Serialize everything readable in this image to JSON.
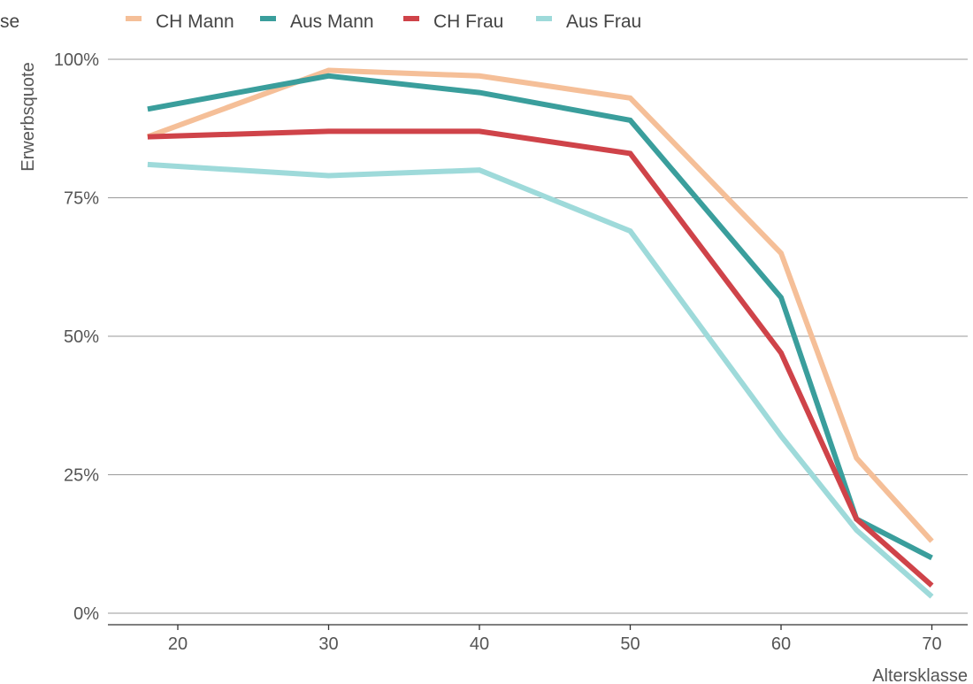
{
  "chart_data": {
    "type": "line",
    "legend_fragment": "se",
    "xlabel": "Altersklasse",
    "ylabel": "Erwerbsquote",
    "xlim": [
      16,
      72
    ],
    "ylim": [
      0,
      1
    ],
    "x_ticks": [
      20,
      30,
      40,
      50,
      60,
      70
    ],
    "x_tick_labels": [
      "20",
      "30",
      "40",
      "50",
      "60",
      "70"
    ],
    "y_ticks": [
      0,
      0.25,
      0.5,
      0.75,
      1.0
    ],
    "y_tick_labels": [
      "0%",
      "25%",
      "50%",
      "75%",
      "100%"
    ],
    "grid": "horizontal",
    "legend_position": "top",
    "x": [
      18,
      30,
      40,
      50,
      60,
      65,
      70
    ],
    "series": [
      {
        "name": "CH Mann",
        "color": "#f5bf98",
        "values": [
          0.86,
          0.98,
          0.97,
          0.93,
          0.65,
          0.28,
          0.13
        ]
      },
      {
        "name": "Aus Mann",
        "color": "#3a9e9c",
        "values": [
          0.91,
          0.97,
          0.94,
          0.89,
          0.57,
          0.17,
          0.1
        ]
      },
      {
        "name": "CH Frau",
        "color": "#cf4349",
        "values": [
          0.86,
          0.87,
          0.87,
          0.83,
          0.47,
          0.17,
          0.05
        ]
      },
      {
        "name": "Aus Frau",
        "color": "#9edada",
        "values": [
          0.81,
          0.79,
          0.8,
          0.69,
          0.32,
          0.15,
          0.03
        ]
      }
    ]
  }
}
